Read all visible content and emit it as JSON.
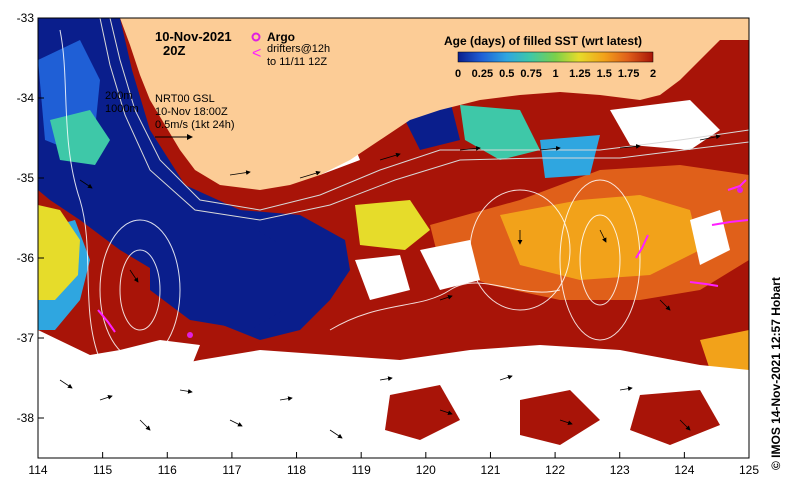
{
  "map": {
    "date_label": "10-Nov-2021",
    "time_label": "20Z",
    "argo_label": "Argo",
    "drifters_line1": "drifters@12h",
    "drifters_line2": "to 11/11 12Z",
    "depth_200": "200m",
    "depth_1000": "1000m",
    "gsl_line1": "NRT00 GSL",
    "gsl_line2": "10-Nov 18:00Z",
    "gsl_line3": "0.5m/s (1kt 24h)",
    "credit": "©  IMOS 14-Nov-2021 12:57 Hobart"
  },
  "legend": {
    "title": "Age (days) of filled SST (wrt latest)",
    "ticks": [
      "0",
      "0.25",
      "0.5",
      "0.75",
      "1",
      "1.25",
      "1.5",
      "1.75",
      "2"
    ],
    "colors": [
      "#0a1e8c",
      "#1f5fd6",
      "#2fa6e0",
      "#3ec8a8",
      "#7bd04a",
      "#e6dc2a",
      "#f2a21a",
      "#e0601a",
      "#a81408"
    ]
  },
  "axes": {
    "lon_labels": [
      "114",
      "115",
      "116",
      "117",
      "118",
      "119",
      "120",
      "121",
      "122",
      "123",
      "124",
      "125"
    ],
    "lat_labels": [
      "-33",
      "-34",
      "-35",
      "-36",
      "-37",
      "-38"
    ]
  },
  "colors": {
    "land": "#fccc96",
    "no_data": "#ffffff",
    "argo": "#e020e0",
    "drifter": "#ff20ff",
    "contour": "#d8d8d8"
  }
}
